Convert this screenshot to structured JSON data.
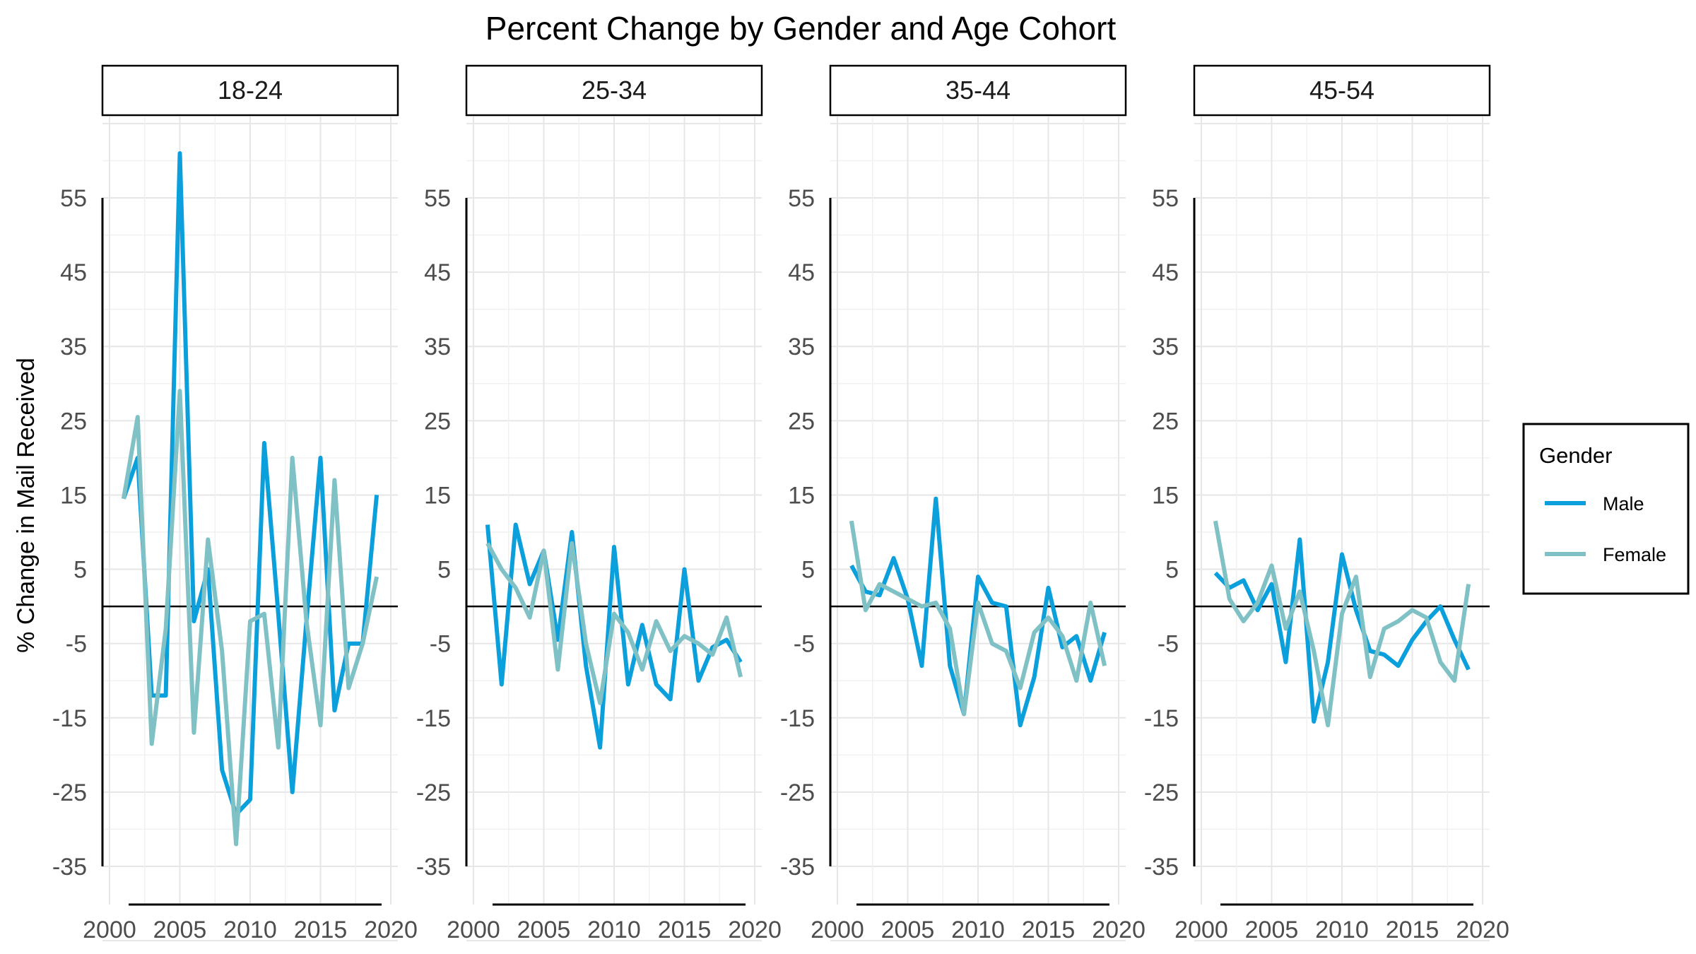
{
  "chart_data": {
    "type": "line",
    "title": "Percent Change by Gender and Age Cohort",
    "ylabel": "% Change in Mail Received",
    "xlabel": "",
    "x": [
      2001,
      2002,
      2003,
      2004,
      2005,
      2006,
      2007,
      2008,
      2009,
      2010,
      2011,
      2012,
      2013,
      2014,
      2015,
      2016,
      2017,
      2018,
      2019
    ],
    "xlim": [
      1999.5,
      2020.5
    ],
    "ylim": [
      -35,
      55
    ],
    "x_ticks": [
      "2000",
      "2005",
      "2010",
      "2015",
      "2020"
    ],
    "y_ticks": [
      "55",
      "45",
      "35",
      "25",
      "15",
      "5",
      "-5",
      "-15",
      "-25",
      "-35"
    ],
    "reference_line_y": 0,
    "grid": true,
    "legend": {
      "title": "Gender",
      "position": "right",
      "entries": [
        {
          "name": "Male",
          "color": "#0ba0dc"
        },
        {
          "name": "Female",
          "color": "#7fc1c4"
        }
      ]
    },
    "panels": [
      {
        "label": "18-24",
        "series": [
          {
            "name": "Male",
            "values": [
              14.5,
              20,
              -12,
              -12,
              61,
              -2,
              5,
              -22,
              -28,
              -26,
              22,
              -1,
              -25,
              -2,
              20,
              -14,
              -5,
              -5,
              15
            ]
          },
          {
            "name": "Female",
            "values": [
              14.5,
              25.5,
              -18.5,
              -3,
              29,
              -17,
              9,
              -6,
              -32,
              -2,
              -1,
              -19,
              20,
              -2,
              -16,
              17,
              -11,
              -5,
              4
            ]
          }
        ]
      },
      {
        "label": "25-34",
        "series": [
          {
            "name": "Male",
            "values": [
              11,
              -10.5,
              11,
              3,
              7.5,
              -4.5,
              10,
              -8,
              -19,
              8,
              -10.5,
              -2.5,
              -10.5,
              -12.5,
              5,
              -10,
              -5.5,
              -4.5,
              -7.5
            ]
          },
          {
            "name": "Female",
            "values": [
              8.5,
              5,
              2.5,
              -1.5,
              7.5,
              -8.5,
              8.5,
              -5,
              -13,
              -1,
              -3.5,
              -8.5,
              -2,
              -6,
              -4,
              -5,
              -6.5,
              -1.5,
              -9.5
            ]
          }
        ]
      },
      {
        "label": "35-44",
        "series": [
          {
            "name": "Male",
            "values": [
              5.5,
              2,
              1.5,
              6.5,
              1,
              -8,
              14.5,
              -8,
              -14.5,
              4,
              0.5,
              0,
              -16,
              -9.5,
              2.5,
              -5.5,
              -4,
              -10,
              -3.5
            ]
          },
          {
            "name": "Female",
            "values": [
              11.5,
              -0.5,
              3,
              2,
              1,
              0,
              0.5,
              -3,
              -14.5,
              0.5,
              -5,
              -6,
              -11,
              -3.5,
              -1.5,
              -4,
              -10,
              0.5,
              -8
            ]
          }
        ]
      },
      {
        "label": "45-54",
        "series": [
          {
            "name": "Male",
            "values": [
              4.5,
              2.5,
              3.5,
              -0.5,
              3,
              -7.5,
              9,
              -15.5,
              -7.5,
              7,
              -0.5,
              -6,
              -6.5,
              -8,
              -4.5,
              -2,
              0,
              -4.5,
              -8.5
            ]
          },
          {
            "name": "Female",
            "values": [
              11.5,
              1,
              -2,
              0.5,
              5.5,
              -3,
              2,
              -6,
              -16,
              -1,
              4,
              -9.5,
              -3,
              -2,
              -0.5,
              -1.5,
              -7.5,
              -10,
              3
            ]
          }
        ]
      }
    ]
  }
}
